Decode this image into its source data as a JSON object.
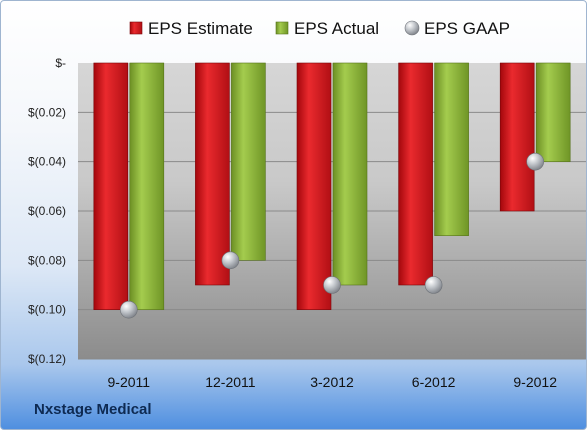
{
  "company": "Nxstage Medical",
  "colors": {
    "estimate": "#d41a1f",
    "actual": "#8bb33a",
    "gaap": "#a8acb2"
  },
  "chart_data": {
    "type": "bar",
    "categories": [
      "9-2011",
      "12-2011",
      "3-2012",
      "6-2012",
      "9-2012"
    ],
    "series": [
      {
        "name": "EPS Estimate",
        "values": [
          -0.1,
          -0.09,
          -0.1,
          -0.09,
          -0.06
        ]
      },
      {
        "name": "EPS Actual",
        "values": [
          -0.1,
          -0.08,
          -0.09,
          -0.07,
          -0.04
        ]
      },
      {
        "name": "EPS GAAP",
        "values": [
          -0.1,
          -0.08,
          -0.09,
          -0.09,
          -0.04
        ],
        "marker": "circle"
      }
    ],
    "ylim": [
      -0.12,
      0
    ],
    "yticks": [
      0,
      -0.02,
      -0.04,
      -0.06,
      -0.08,
      -0.1,
      -0.12
    ],
    "ytick_labels": [
      "$-",
      "$(0.02)",
      "$(0.04)",
      "$(0.06)",
      "$(0.08)",
      "$(0.10)",
      "$(0.12)"
    ],
    "legend_position": "top",
    "grid": true
  }
}
